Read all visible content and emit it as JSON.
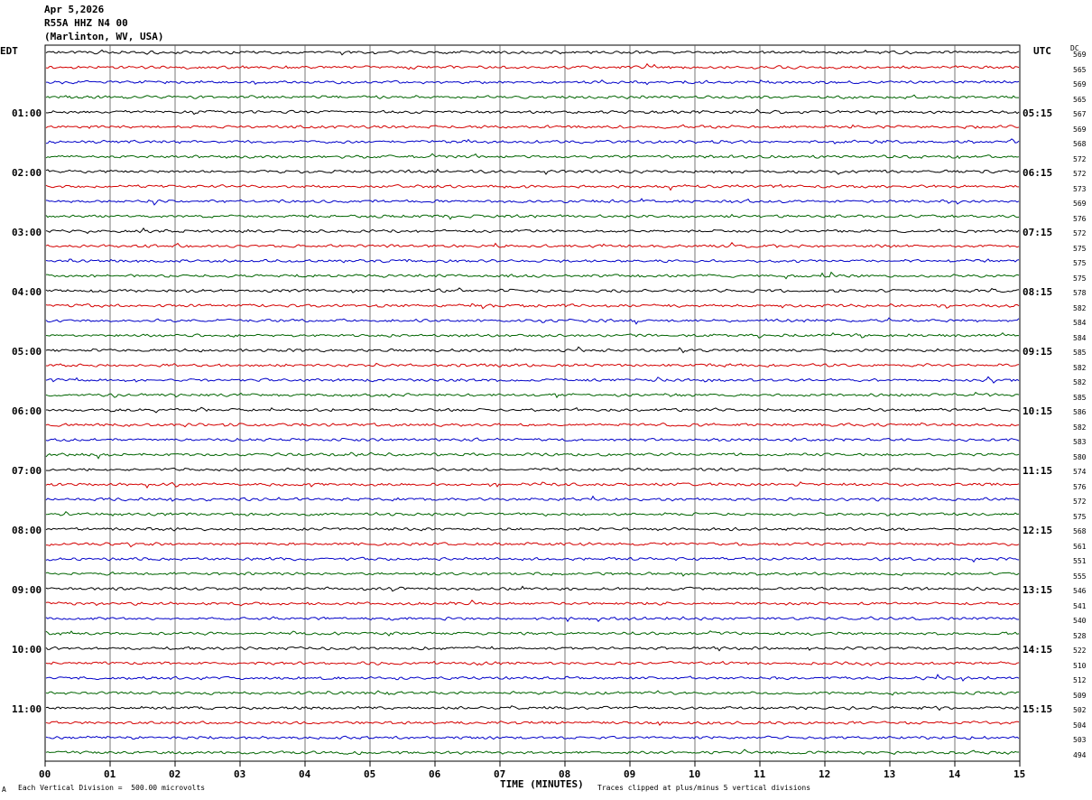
{
  "header": {
    "date": "Apr 5,2026",
    "station": "R55A HHZ N4 00",
    "location": "(Marlinton, WV, USA)"
  },
  "axes": {
    "left_tz": "EDT",
    "right_tz": "UTC",
    "dc_label": "DC",
    "x_title": "TIME (MINUTES)",
    "x_ticks": [
      "00",
      "01",
      "02",
      "03",
      "04",
      "05",
      "06",
      "07",
      "08",
      "09",
      "10",
      "11",
      "12",
      "13",
      "14",
      "15"
    ]
  },
  "footer": {
    "scale_note": "Each Vertical Division =  500.00 microvolts",
    "clip_note": "Traces clipped at plus/minus 5 vertical divisions",
    "corner_mark": "A"
  },
  "chart_data": {
    "type": "line",
    "title": "R55A HHZ N4 00",
    "xlabel": "TIME (MINUTES)",
    "xlim": [
      0,
      15
    ],
    "trace_count": 48,
    "trace_colors": [
      "#000000",
      "#d40000",
      "#0000c8",
      "#006400"
    ],
    "left_hour_labels": [
      "01:00",
      "02:00",
      "03:00",
      "04:00",
      "05:00",
      "06:00",
      "07:00",
      "08:00",
      "09:00",
      "10:00",
      "11:00"
    ],
    "right_hour_labels": [
      "05:15",
      "06:15",
      "07:15",
      "08:15",
      "09:15",
      "10:15",
      "11:15",
      "12:15",
      "13:15",
      "14:15",
      "15:15"
    ],
    "dc_offsets": [
      569,
      565,
      569,
      565,
      567,
      569,
      568,
      572,
      572,
      573,
      569,
      576,
      572,
      575,
      575,
      575,
      578,
      582,
      584,
      584,
      585,
      582,
      582,
      585,
      586,
      582,
      583,
      580,
      574,
      576,
      572,
      575,
      568,
      561,
      551,
      555,
      546,
      541,
      540,
      528,
      522,
      510,
      512,
      509,
      502,
      504,
      503,
      494
    ],
    "scale_microvolts_per_division": 500.0,
    "clip_divisions": 5
  }
}
